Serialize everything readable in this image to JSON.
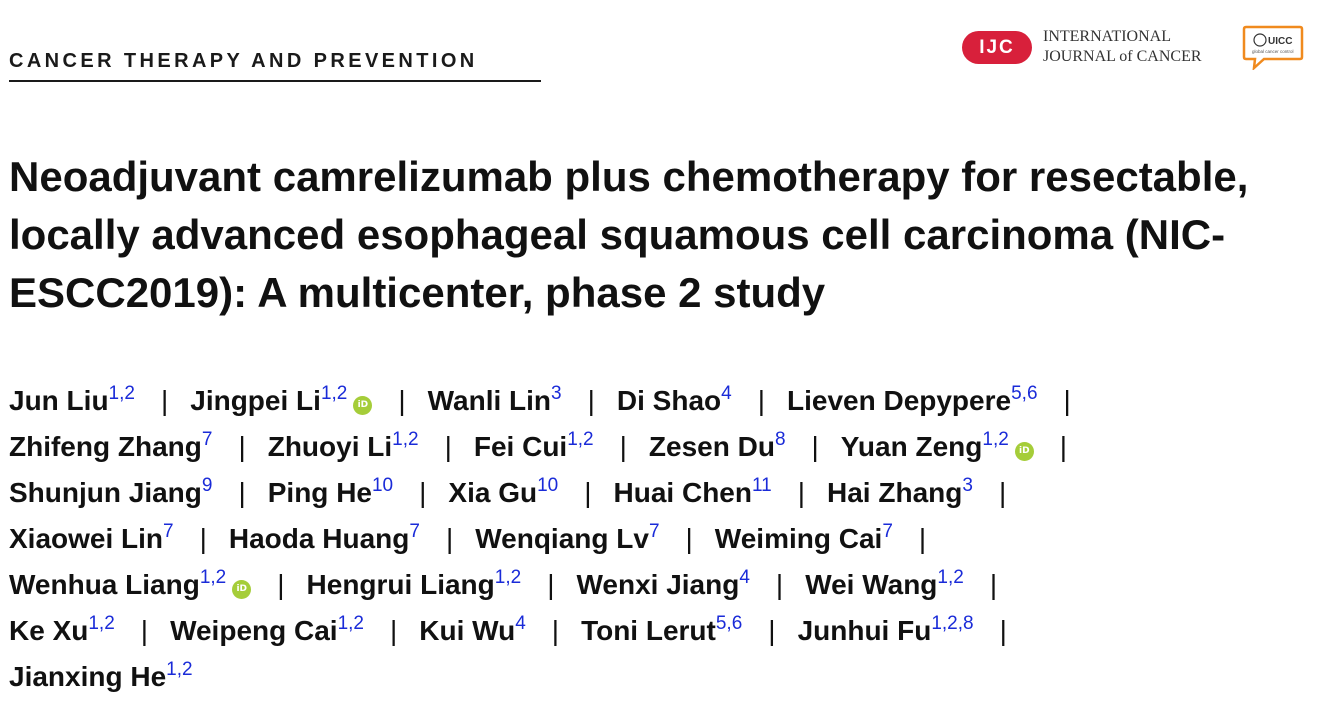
{
  "header": {
    "section": "CANCER THERAPY AND PREVENTION",
    "journal_badge": "IJC",
    "journal_line1": "INTERNATIONAL",
    "journal_line2": "JOURNAL of CANCER",
    "partner_logo": "UICC",
    "partner_tagline": "global cancer control"
  },
  "article": {
    "title": "Neoadjuvant camrelizumab plus chemotherapy for resectable, locally advanced esophageal squamous cell carcinoma (NIC-ESCC2019): A multicenter, phase 2 study"
  },
  "orcid_label": "iD",
  "separator": "|",
  "author_rows": [
    [
      {
        "name": "Jun Liu",
        "aff": "1,2",
        "orcid": false
      },
      {
        "name": "Jingpei Li",
        "aff": "1,2",
        "orcid": true
      },
      {
        "name": "Wanli Lin",
        "aff": "3",
        "orcid": false
      },
      {
        "name": "Di Shao",
        "aff": "4",
        "orcid": false
      },
      {
        "name": "Lieven Depypere",
        "aff": "5,6",
        "orcid": false
      }
    ],
    [
      {
        "name": "Zhifeng Zhang",
        "aff": "7",
        "orcid": false
      },
      {
        "name": "Zhuoyi Li",
        "aff": "1,2",
        "orcid": false
      },
      {
        "name": "Fei Cui",
        "aff": "1,2",
        "orcid": false
      },
      {
        "name": "Zesen Du",
        "aff": "8",
        "orcid": false
      },
      {
        "name": "Yuan Zeng",
        "aff": "1,2",
        "orcid": true
      }
    ],
    [
      {
        "name": "Shunjun Jiang",
        "aff": "9",
        "orcid": false
      },
      {
        "name": "Ping He",
        "aff": "10",
        "orcid": false
      },
      {
        "name": "Xia Gu",
        "aff": "10",
        "orcid": false
      },
      {
        "name": "Huai Chen",
        "aff": "11",
        "orcid": false
      },
      {
        "name": "Hai Zhang",
        "aff": "3",
        "orcid": false
      }
    ],
    [
      {
        "name": "Xiaowei Lin",
        "aff": "7",
        "orcid": false
      },
      {
        "name": "Haoda Huang",
        "aff": "7",
        "orcid": false
      },
      {
        "name": "Wenqiang Lv",
        "aff": "7",
        "orcid": false
      },
      {
        "name": "Weiming Cai",
        "aff": "7",
        "orcid": false
      }
    ],
    [
      {
        "name": "Wenhua Liang",
        "aff": "1,2",
        "orcid": true
      },
      {
        "name": "Hengrui Liang",
        "aff": "1,2",
        "orcid": false
      },
      {
        "name": "Wenxi Jiang",
        "aff": "4",
        "orcid": false
      },
      {
        "name": "Wei Wang",
        "aff": "1,2",
        "orcid": false
      }
    ],
    [
      {
        "name": "Ke Xu",
        "aff": "1,2",
        "orcid": false
      },
      {
        "name": "Weipeng Cai",
        "aff": "1,2",
        "orcid": false
      },
      {
        "name": "Kui Wu",
        "aff": "4",
        "orcid": false
      },
      {
        "name": "Toni Lerut",
        "aff": "5,6",
        "orcid": false
      },
      {
        "name": "Junhui Fu",
        "aff": "1,2,8",
        "orcid": false
      }
    ],
    [
      {
        "name": "Jianxing He",
        "aff": "1,2",
        "orcid": false
      }
    ]
  ]
}
